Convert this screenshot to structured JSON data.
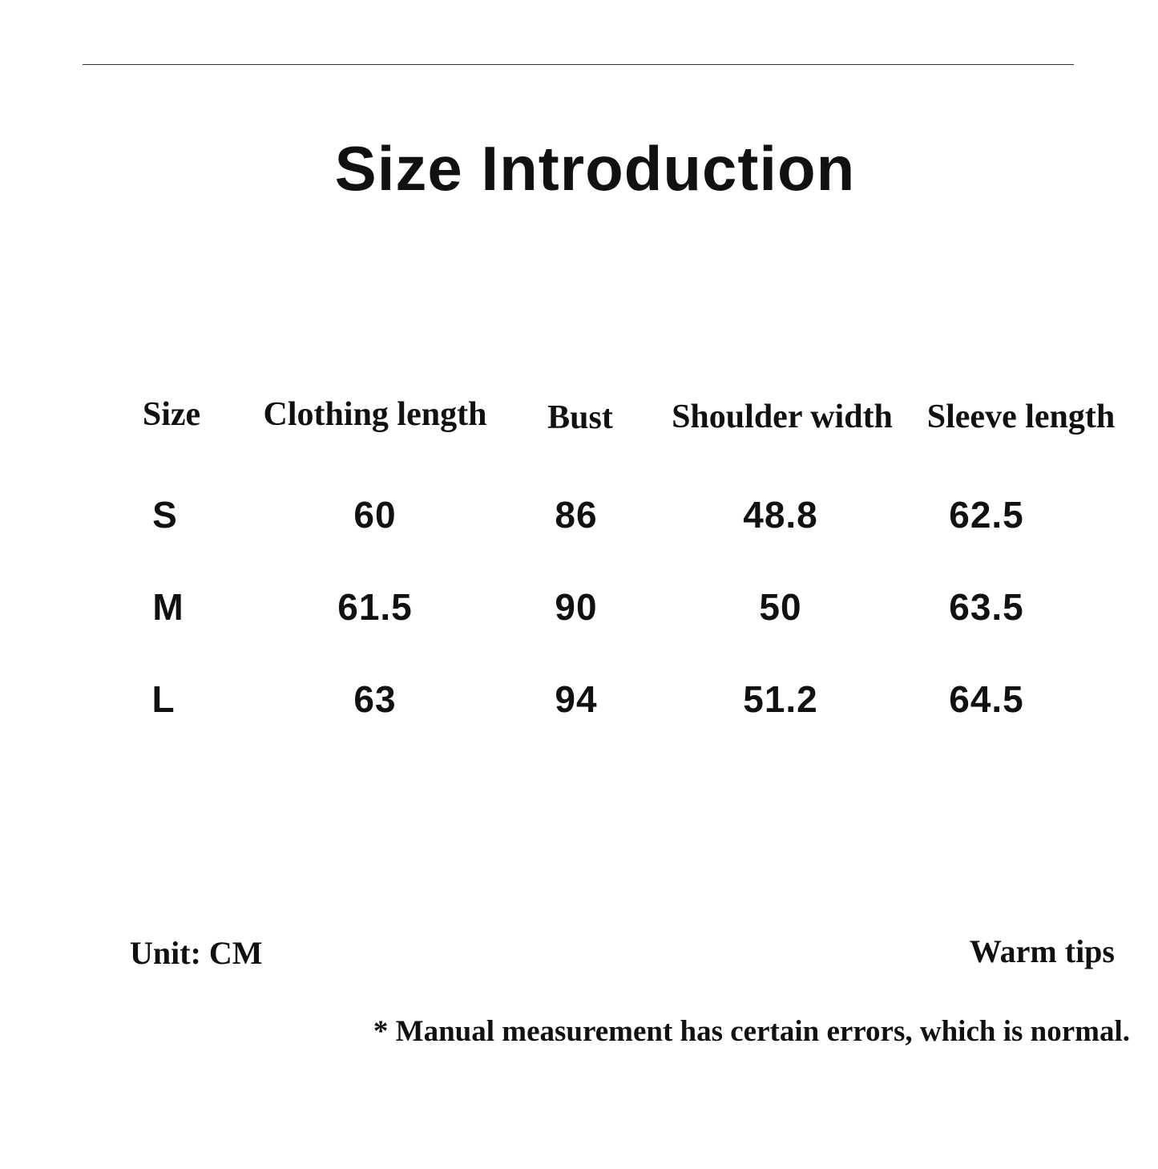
{
  "title": "Size Introduction",
  "table": {
    "headers": [
      "Size",
      "Clothing length",
      "Bust",
      "Shoulder width",
      "Sleeve length"
    ],
    "rows": [
      [
        "S",
        "60",
        "86",
        "48.8",
        "62.5"
      ],
      [
        "M",
        "61.5",
        "90",
        "50",
        "63.5"
      ],
      [
        "L",
        "63",
        "94",
        "51.2",
        "64.5"
      ]
    ]
  },
  "unit": "Unit: CM",
  "warm_tips": "Warm tips",
  "note": "* Manual measurement has certain errors, which is normal."
}
